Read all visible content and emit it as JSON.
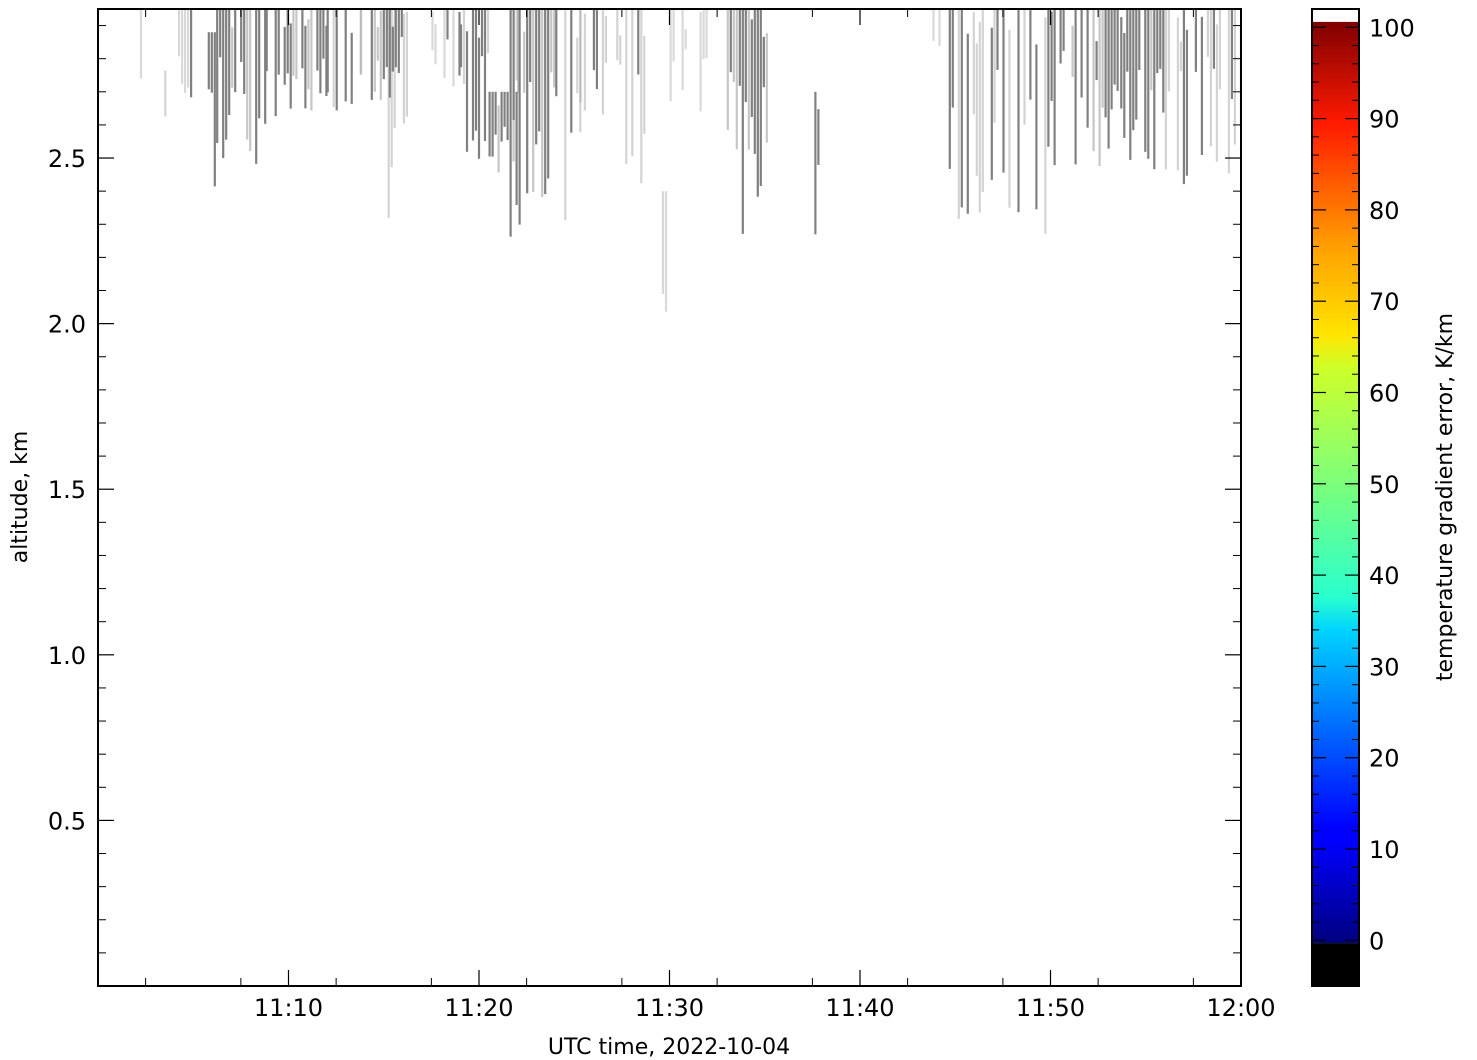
{
  "chart_data": {
    "type": "heatmap",
    "title": "",
    "xlabel": "UTC time,  2022-10-04",
    "ylabel": "altitude, km",
    "x_tick_labels": [
      "11:10",
      "11:20",
      "11:30",
      "11:40",
      "11:50",
      "12:00"
    ],
    "x_ticks_minutes": [
      10,
      20,
      30,
      40,
      50,
      60
    ],
    "xlim_minutes_after_11_00": [
      0,
      60
    ],
    "y_tick_labels": [
      "0.5",
      "1.0",
      "1.5",
      "2.0",
      "2.5"
    ],
    "y_ticks": [
      0.5,
      1.0,
      1.5,
      2.0,
      2.5
    ],
    "ylim_km": [
      0,
      2.95
    ],
    "grid": false,
    "colorbar": {
      "label": "temperature gradient error, K/km",
      "range": [
        -5,
        102
      ],
      "tick_labels": [
        "0",
        "10",
        "20",
        "30",
        "40",
        "50",
        "60",
        "70",
        "80",
        "90",
        "100"
      ],
      "ticks": [
        0,
        10,
        20,
        30,
        40,
        50,
        60,
        70,
        80,
        90,
        100
      ],
      "under_color": "#000000",
      "over_color": "#ffffff",
      "colormap": "jet"
    },
    "missing_color": "#808080",
    "missing_data_stripes": [
      {
        "x0": 2.2,
        "x1": 2.3,
        "y_top": 2.95,
        "y_bottom": 2.55,
        "shade": "light"
      },
      {
        "x0": 3.0,
        "x1": 3.6,
        "y_top": 2.82,
        "y_bottom": 2.34,
        "shade": "mixed"
      },
      {
        "x0": 4.2,
        "x1": 5.0,
        "y_top": 2.95,
        "y_bottom": 2.6,
        "shade": "light"
      },
      {
        "x0": 5.6,
        "x1": 6.2,
        "y_top": 2.88,
        "y_bottom": 2.38,
        "shade": "mixed"
      },
      {
        "x0": 6.2,
        "x1": 8.8,
        "y_top": 2.95,
        "y_bottom": 2.45,
        "shade": "dark"
      },
      {
        "x0": 8.8,
        "x1": 10.2,
        "y_top": 2.95,
        "y_bottom": 2.55,
        "shade": "dark"
      },
      {
        "x0": 10.2,
        "x1": 12.0,
        "y_top": 2.95,
        "y_bottom": 2.62,
        "shade": "dark"
      },
      {
        "x0": 12.0,
        "x1": 14.0,
        "y_top": 2.95,
        "y_bottom": 2.55,
        "shade": "mixed"
      },
      {
        "x0": 13.6,
        "x1": 14.2,
        "y_top": 2.95,
        "y_bottom": 2.33,
        "shade": "light"
      },
      {
        "x0": 14.0,
        "x1": 16.0,
        "y_top": 2.95,
        "y_bottom": 2.62,
        "shade": "dark"
      },
      {
        "x0": 15.2,
        "x1": 15.7,
        "y_top": 2.95,
        "y_bottom": 2.21,
        "shade": "mixed"
      },
      {
        "x0": 16.0,
        "x1": 17.5,
        "y_top": 2.95,
        "y_bottom": 2.52,
        "shade": "mixed"
      },
      {
        "x0": 17.5,
        "x1": 19.0,
        "y_top": 2.95,
        "y_bottom": 2.7,
        "shade": "light"
      },
      {
        "x0": 19.0,
        "x1": 20.5,
        "y_top": 2.95,
        "y_bottom": 2.47,
        "shade": "mixed"
      },
      {
        "x0": 20.5,
        "x1": 22.0,
        "y_top": 2.7,
        "y_bottom": 2.32,
        "shade": "dark"
      },
      {
        "x0": 21.6,
        "x1": 22.1,
        "y_top": 2.95,
        "y_bottom": 2.18,
        "shade": "mixed"
      },
      {
        "x0": 22.0,
        "x1": 24.0,
        "y_top": 2.95,
        "y_bottom": 2.38,
        "shade": "dark"
      },
      {
        "x0": 24.0,
        "x1": 25.5,
        "y_top": 2.95,
        "y_bottom": 2.3,
        "shade": "mixed"
      },
      {
        "x0": 24.8,
        "x1": 25.3,
        "y_top": 2.95,
        "y_bottom": 2.1,
        "shade": "light"
      },
      {
        "x0": 25.5,
        "x1": 27.2,
        "y_top": 2.95,
        "y_bottom": 2.6,
        "shade": "mixed"
      },
      {
        "x0": 27.2,
        "x1": 29.0,
        "y_top": 2.95,
        "y_bottom": 2.35,
        "shade": "mixed"
      },
      {
        "x0": 29.6,
        "x1": 29.8,
        "y_top": 2.4,
        "y_bottom": 2.01,
        "shade": "light"
      },
      {
        "x0": 30.0,
        "x1": 32.0,
        "y_top": 2.95,
        "y_bottom": 2.62,
        "shade": "light"
      },
      {
        "x0": 33.0,
        "x1": 35.3,
        "y_top": 2.95,
        "y_bottom": 2.25,
        "shade": "dark"
      },
      {
        "x0": 37.6,
        "x1": 37.9,
        "y_top": 2.7,
        "y_bottom": 2.25,
        "shade": "dark"
      },
      {
        "x0": 43.8,
        "x1": 44.2,
        "y_top": 2.95,
        "y_bottom": 2.75,
        "shade": "light"
      },
      {
        "x0": 44.5,
        "x1": 47.0,
        "y_top": 2.95,
        "y_bottom": 2.3,
        "shade": "mixed"
      },
      {
        "x0": 47.0,
        "x1": 50.0,
        "y_top": 2.95,
        "y_bottom": 2.26,
        "shade": "mixed"
      },
      {
        "x0": 50.0,
        "x1": 53.5,
        "y_top": 2.95,
        "y_bottom": 2.45,
        "shade": "dark"
      },
      {
        "x0": 53.5,
        "x1": 56.0,
        "y_top": 2.95,
        "y_bottom": 2.35,
        "shade": "dark"
      },
      {
        "x0": 56.0,
        "x1": 60.0,
        "y_top": 2.95,
        "y_bottom": 2.42,
        "shade": "mixed"
      }
    ]
  }
}
